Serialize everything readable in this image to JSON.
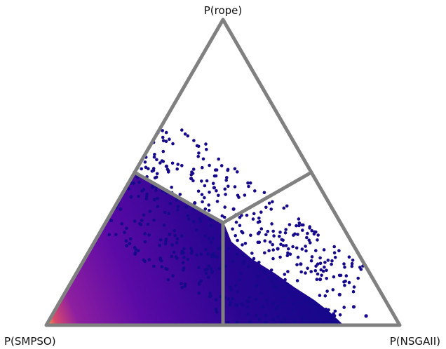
{
  "chart_data": {
    "type": "heatmap",
    "subtype": "ternary-hexbin",
    "title": "",
    "vertices": {
      "top": "P(rope)",
      "left": "P(SMPSO)",
      "right": "P(NSGAII)"
    },
    "regions": [
      "P(SMPSO) > others",
      "P(rope) > others",
      "P(NSGAII) > others"
    ],
    "frame_color": "#808080",
    "colormap": "plasma",
    "density_peak": "near P(SMPSO) corner along the bottom edge",
    "points": [
      {
        "p_smpso": 0.45,
        "p_rope": 0.55
      },
      {
        "p_smpso": 0.5,
        "p_rope": 0.5
      },
      {
        "p_smpso": 0.4,
        "p_rope": 0.52
      },
      {
        "p_smpso": 0.55,
        "p_rope": 0.42
      },
      {
        "p_smpso": 0.35,
        "p_rope": 0.48
      },
      {
        "p_smpso": 0.6,
        "p_rope": 0.38
      },
      {
        "p_smpso": 0.3,
        "p_rope": 0.45
      },
      {
        "p_smpso": 0.38,
        "p_rope": 0.4
      },
      {
        "p_smpso": 0.28,
        "p_rope": 0.38
      },
      {
        "p_smpso": 0.25,
        "p_rope": 0.3
      },
      {
        "p_smpso": 0.22,
        "p_rope": 0.25
      },
      {
        "p_smpso": 0.18,
        "p_rope": 0.2
      },
      {
        "p_smpso": 0.15,
        "p_rope": 0.15
      },
      {
        "p_smpso": 0.12,
        "p_rope": 0.1
      },
      {
        "p_smpso": 0.1,
        "p_rope": 0.06
      },
      {
        "p_smpso": 0.08,
        "p_rope": 0.03
      }
    ]
  }
}
